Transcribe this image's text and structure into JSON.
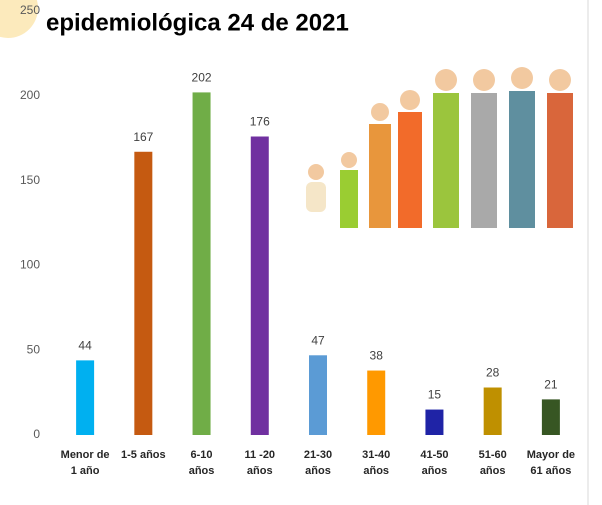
{
  "chart_data": {
    "type": "bar",
    "title": "epidemiológica 24 de 2021",
    "categories": [
      "Menor de 1 año",
      "1-5 años",
      "6-10 años",
      "11 -20 años",
      "21-30 años",
      "31-40 años",
      "41-50 años",
      "51-60 años",
      "Mayor de 61 años"
    ],
    "values": [
      44,
      167,
      202,
      176,
      47,
      38,
      15,
      28,
      21
    ],
    "colors": [
      "#00b0f0",
      "#c55a11",
      "#70ad47",
      "#7030a0",
      "#5b9bd5",
      "#ff9900",
      "#1f23a6",
      "#bf9000",
      "#375623"
    ],
    "ylim": [
      0,
      250
    ],
    "yticks": [
      0,
      50,
      100,
      150,
      200,
      250
    ],
    "grid": false
  }
}
